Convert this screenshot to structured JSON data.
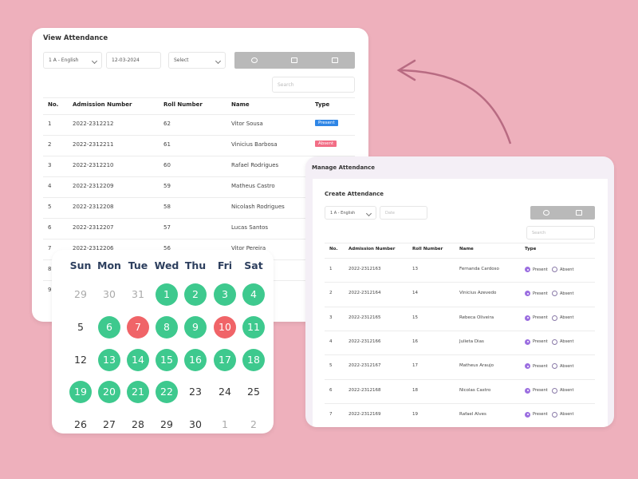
{
  "view_attendance": {
    "title": "View Attendance",
    "class_select": "1 A - English",
    "date": "12-03-2024",
    "select": "Select",
    "search": "Search",
    "headers": [
      "No.",
      "Admission Number",
      "Roll Number",
      "Name",
      "Type"
    ],
    "rows": [
      [
        1,
        "2022-2312212",
        62,
        "Vitor Sousa",
        "Present"
      ],
      [
        2,
        "2022-2312211",
        61,
        "Vinicius Barbosa",
        "Absent"
      ],
      [
        3,
        "2022-2312210",
        60,
        "Rafael Rodrigues"
      ],
      [
        4,
        "2022-2312209",
        59,
        "Matheus Castro"
      ],
      [
        5,
        "2022-2312208",
        58,
        "Nicolash Rodrigues"
      ],
      [
        6,
        "2022-2312207",
        57,
        "Lucas Santos"
      ],
      [
        7,
        "2022-2312206",
        56,
        "Vitor Pereira"
      ],
      [
        8
      ],
      [
        9
      ]
    ]
  },
  "calendar": {
    "weekdays": [
      "Sun",
      "Mon",
      "Tue",
      "Wed",
      "Thu",
      "Fri",
      "Sat"
    ],
    "weeks": [
      [
        {
          "day": 29,
          "state": "muted"
        },
        {
          "day": 30,
          "state": "muted"
        },
        {
          "day": 31,
          "state": "muted"
        },
        {
          "day": 1,
          "state": "present"
        },
        {
          "day": 2,
          "state": "present"
        },
        {
          "day": 3,
          "state": "present"
        },
        {
          "day": 4,
          "state": "present"
        }
      ],
      [
        {
          "day": 5,
          "state": "plain"
        },
        {
          "day": 6,
          "state": "present"
        },
        {
          "day": 7,
          "state": "absent"
        },
        {
          "day": 8,
          "state": "present"
        },
        {
          "day": 9,
          "state": "present"
        },
        {
          "day": 10,
          "state": "absent"
        },
        {
          "day": 11,
          "state": "present"
        }
      ],
      [
        {
          "day": 12,
          "state": "plain"
        },
        {
          "day": 13,
          "state": "present"
        },
        {
          "day": 14,
          "state": "present"
        },
        {
          "day": 15,
          "state": "present"
        },
        {
          "day": 16,
          "state": "present"
        },
        {
          "day": 17,
          "state": "present"
        },
        {
          "day": 18,
          "state": "present"
        }
      ],
      [
        {
          "day": 19,
          "state": "present"
        },
        {
          "day": 20,
          "state": "present"
        },
        {
          "day": 21,
          "state": "present"
        },
        {
          "day": 22,
          "state": "present"
        },
        {
          "day": 23,
          "state": "plain"
        },
        {
          "day": 24,
          "state": "plain"
        },
        {
          "day": 25,
          "state": "plain"
        }
      ],
      [
        {
          "day": 26,
          "state": "plain"
        },
        {
          "day": 27,
          "state": "plain"
        },
        {
          "day": 28,
          "state": "plain"
        },
        {
          "day": 29,
          "state": "plain"
        },
        {
          "day": 30,
          "state": "plain"
        },
        {
          "day": 1,
          "state": "muted"
        },
        {
          "day": 2,
          "state": "muted"
        }
      ]
    ]
  },
  "manage_attendance": {
    "title": "Manage Attendance",
    "subtitle": "Create Attendance",
    "class_select": "1 A - English",
    "date": "Date",
    "search": "Search",
    "headers": [
      "No.",
      "Admission Number",
      "Roll Number",
      "Name",
      "Type"
    ],
    "options": [
      "Present",
      "Absent"
    ],
    "rows": [
      [
        1,
        "2022-2312163",
        13,
        "Fernanda Cardoso"
      ],
      [
        2,
        "2022-2312164",
        14,
        "Vinicius Azevedo"
      ],
      [
        3,
        "2022-2312165",
        15,
        "Rebeca Oliveira"
      ],
      [
        4,
        "2022-2312166",
        16,
        "Julieta Dias"
      ],
      [
        5,
        "2022-2312167",
        17,
        "Matheus Araujo"
      ],
      [
        6,
        "2022-2312168",
        18,
        "Nicolas Castro"
      ],
      [
        7,
        "2022-2312169",
        19,
        "Rafael Alves"
      ]
    ]
  }
}
